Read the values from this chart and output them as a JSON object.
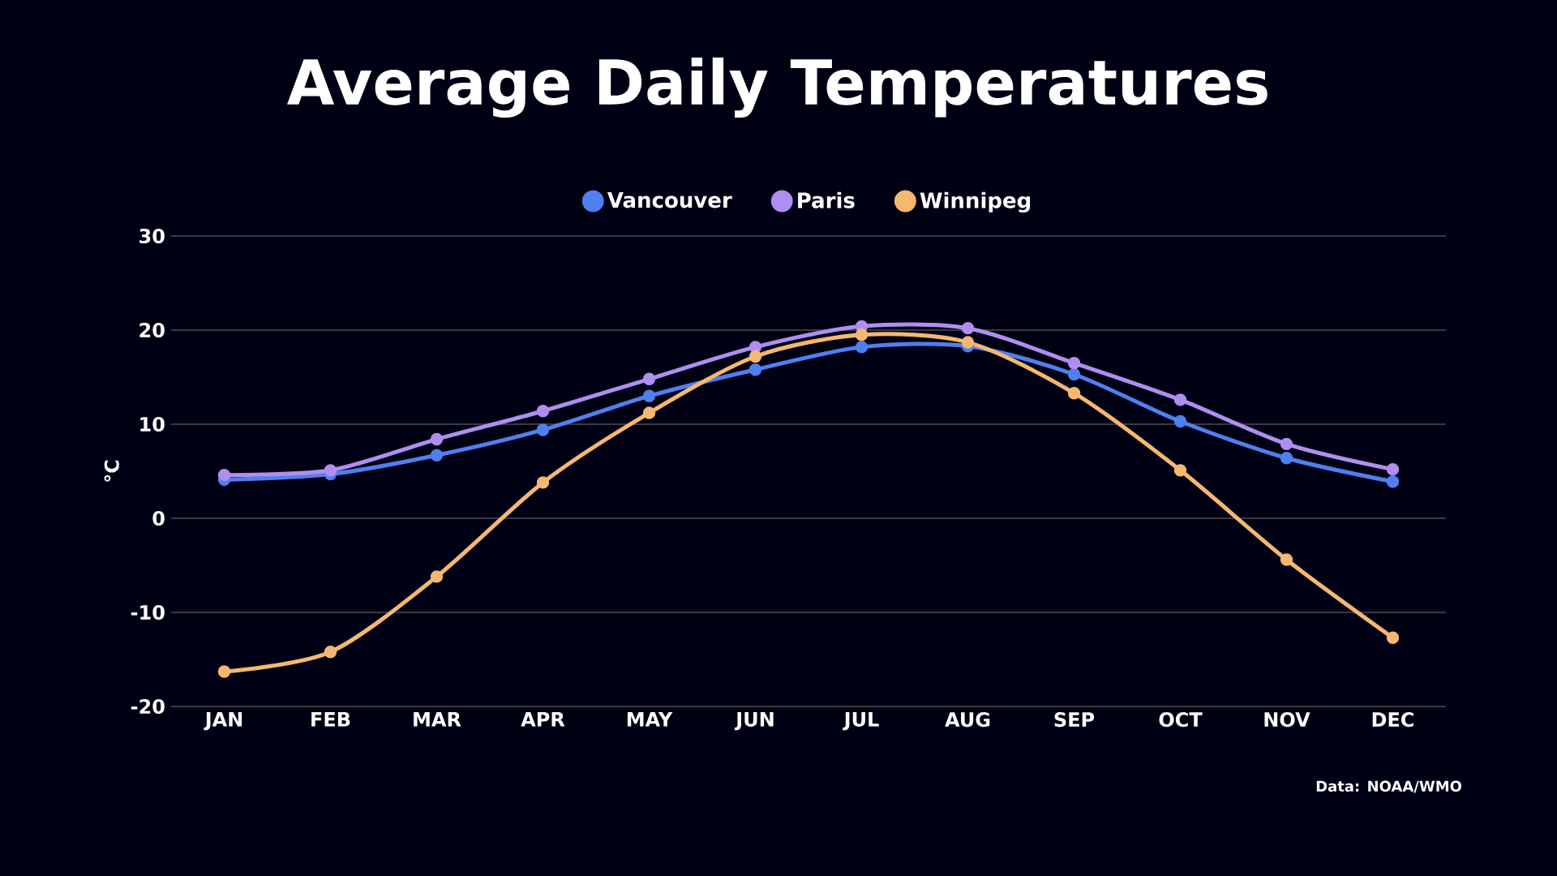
{
  "chart_data": {
    "type": "line",
    "title": "Average Daily Temperatures",
    "ylabel": "°C",
    "categories": [
      "JAN",
      "FEB",
      "MAR",
      "APR",
      "MAY",
      "JUN",
      "JUL",
      "AUG",
      "SEP",
      "OCT",
      "NOV",
      "DEC"
    ],
    "series": [
      {
        "name": "Vancouver",
        "color": "#4f7ff0",
        "values": [
          4.1,
          4.7,
          6.7,
          9.4,
          13.0,
          15.8,
          18.2,
          18.3,
          15.3,
          10.3,
          6.4,
          3.9
        ]
      },
      {
        "name": "Paris",
        "color": "#b08ef0",
        "values": [
          4.6,
          5.1,
          8.4,
          11.4,
          14.8,
          18.2,
          20.4,
          20.2,
          16.5,
          12.6,
          7.9,
          5.2
        ]
      },
      {
        "name": "Winnipeg",
        "color": "#f5b870",
        "values": [
          -16.3,
          -14.2,
          -6.2,
          3.8,
          11.2,
          17.2,
          19.5,
          18.7,
          13.3,
          5.1,
          -4.4,
          -12.7
        ]
      }
    ],
    "ylim": [
      -20,
      30
    ],
    "yticks": [
      -20,
      -10,
      0,
      10,
      20,
      30
    ],
    "grid": "y",
    "legend": "top",
    "marker": "circle",
    "line_style": "solid",
    "annotations": [
      "Data: NOAA/WMO"
    ]
  }
}
